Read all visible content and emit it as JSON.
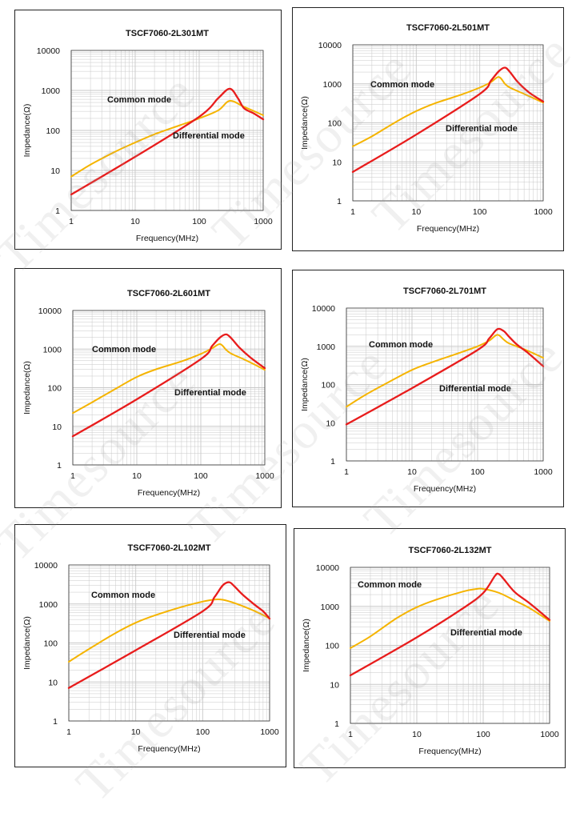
{
  "colors": {
    "common": "#f5b400",
    "differential": "#e81c1c",
    "grid": "#c8c8c8",
    "frame": "#333333"
  },
  "watermark": "Timesource",
  "chart_data": [
    {
      "type": "line",
      "title": "TSCF7060-2L301MT",
      "xlabel": "Frequency(MHz)",
      "ylabel": "Impedance(Ω)",
      "xscale": "log",
      "yscale": "log",
      "xlim": [
        1,
        1000
      ],
      "ylim": [
        1,
        10000
      ],
      "xticks": [
        "1",
        "10",
        "100",
        "1000"
      ],
      "yticks": [
        "1",
        "10",
        "100",
        "1000",
        "10000"
      ],
      "series": [
        {
          "name": "Common mode",
          "label": "Common mode",
          "x": [
            1,
            2,
            5,
            10,
            20,
            50,
            100,
            200,
            300,
            500,
            1000
          ],
          "y": [
            7,
            14,
            30,
            50,
            80,
            135,
            200,
            320,
            550,
            390,
            240
          ]
        },
        {
          "name": "Differential mode",
          "label": "Differential mode",
          "x": [
            1,
            10,
            100,
            200,
            300,
            400,
            500,
            700,
            1000
          ],
          "y": [
            2.5,
            22,
            220,
            650,
            1100,
            650,
            360,
            270,
            190
          ]
        }
      ]
    },
    {
      "type": "line",
      "title": "TSCF7060-2L501MT",
      "xlabel": "Frequency(MHz)",
      "ylabel": "Impedance(Ω)",
      "xscale": "log",
      "yscale": "log",
      "xlim": [
        1,
        1000
      ],
      "ylim": [
        1,
        10000
      ],
      "xticks": [
        "1",
        "10",
        "100",
        "1000"
      ],
      "yticks": [
        "1",
        "10",
        "100",
        "1000",
        "10000"
      ],
      "series": [
        {
          "name": "Common mode",
          "label": "Common mode",
          "x": [
            1,
            2,
            5,
            10,
            20,
            50,
            100,
            150,
            200,
            250,
            300,
            500,
            1000
          ],
          "y": [
            25,
            45,
            110,
            200,
            320,
            520,
            800,
            1100,
            1500,
            1000,
            800,
            550,
            330
          ]
        },
        {
          "name": "Differential mode",
          "label": "Differential mode",
          "x": [
            1,
            10,
            100,
            150,
            200,
            250,
            300,
            400,
            600,
            1000
          ],
          "y": [
            5.5,
            50,
            550,
            1200,
            2100,
            2600,
            2000,
            1100,
            600,
            350
          ]
        }
      ]
    },
    {
      "type": "line",
      "title": "TSCF7060-2L601MT",
      "xlabel": "Frequency(MHz)",
      "ylabel": "Impedance(Ω)",
      "xscale": "log",
      "yscale": "log",
      "xlim": [
        1,
        1000
      ],
      "ylim": [
        1,
        10000
      ],
      "xticks": [
        "1",
        "10",
        "100",
        "1000"
      ],
      "yticks": [
        "1",
        "10",
        "100",
        "1000",
        "10000"
      ],
      "series": [
        {
          "name": "Common mode",
          "label": "Common mode",
          "x": [
            1,
            2,
            5,
            10,
            20,
            50,
            100,
            150,
            200,
            250,
            300,
            500,
            1000
          ],
          "y": [
            22,
            42,
            100,
            190,
            300,
            480,
            750,
            1050,
            1350,
            950,
            760,
            520,
            290
          ]
        },
        {
          "name": "Differential mode",
          "label": "Differential mode",
          "x": [
            1,
            10,
            100,
            150,
            200,
            250,
            300,
            400,
            600,
            1000
          ],
          "y": [
            5.5,
            50,
            550,
            1200,
            2000,
            2400,
            1900,
            1100,
            600,
            320
          ]
        }
      ]
    },
    {
      "type": "line",
      "title": "TSCF7060-2L701MT",
      "xlabel": "Frequency(MHz)",
      "ylabel": "Impedance(Ω)",
      "xscale": "log",
      "yscale": "log",
      "xlim": [
        1,
        1000
      ],
      "ylim": [
        1,
        10000
      ],
      "xticks": [
        "1",
        "10",
        "100",
        "1000"
      ],
      "yticks": [
        "1",
        "10",
        "100",
        "1000",
        "10000"
      ],
      "series": [
        {
          "name": "Common mode",
          "label": "Common mode",
          "x": [
            1,
            2,
            5,
            10,
            20,
            50,
            100,
            150,
            200,
            250,
            300,
            500,
            1000
          ],
          "y": [
            26,
            55,
            130,
            240,
            380,
            650,
            1000,
            1400,
            2000,
            1500,
            1200,
            850,
            500
          ]
        },
        {
          "name": "Differential mode",
          "label": "Differential mode",
          "x": [
            1,
            10,
            100,
            150,
            200,
            250,
            300,
            400,
            600,
            1000
          ],
          "y": [
            9,
            80,
            800,
            1600,
            2800,
            2500,
            1800,
            1100,
            650,
            300
          ]
        }
      ]
    },
    {
      "type": "line",
      "title": "TSCF7060-2L102MT",
      "xlabel": "Frequency(MHz)",
      "ylabel": "Impedance(Ω)",
      "xscale": "log",
      "yscale": "log",
      "xlim": [
        1,
        1000
      ],
      "ylim": [
        1,
        10000
      ],
      "xticks": [
        "1",
        "10",
        "100",
        "1000"
      ],
      "yticks": [
        "1",
        "10",
        "100",
        "1000",
        "10000"
      ],
      "series": [
        {
          "name": "Common mode",
          "label": "Common mode",
          "x": [
            1,
            2,
            5,
            10,
            20,
            50,
            100,
            150,
            200,
            300,
            500,
            800,
            1000
          ],
          "y": [
            33,
            70,
            180,
            330,
            520,
            850,
            1150,
            1300,
            1280,
            1050,
            750,
            520,
            420
          ]
        },
        {
          "name": "Differential mode",
          "label": "Differential mode",
          "x": [
            1,
            10,
            100,
            150,
            200,
            250,
            300,
            400,
            600,
            800,
            1000
          ],
          "y": [
            7,
            65,
            650,
            1500,
            3000,
            3600,
            2800,
            1700,
            950,
            650,
            420
          ]
        }
      ]
    },
    {
      "type": "line",
      "title": "TSCF7060-2L132MT",
      "xlabel": "Frequency(MHz)",
      "ylabel": "Impedance(Ω)",
      "xscale": "log",
      "yscale": "log",
      "xlim": [
        1,
        1000
      ],
      "ylim": [
        1,
        10000
      ],
      "xticks": [
        "1",
        "10",
        "100",
        "1000"
      ],
      "yticks": [
        "1",
        "10",
        "100",
        "1000",
        "10000"
      ],
      "series": [
        {
          "name": "Common mode",
          "label": "Common mode",
          "x": [
            1,
            2,
            5,
            10,
            20,
            50,
            80,
            100,
            150,
            200,
            300,
            500,
            1000
          ],
          "y": [
            85,
            170,
            500,
            950,
            1500,
            2400,
            2800,
            2800,
            2400,
            2000,
            1400,
            900,
            420
          ]
        },
        {
          "name": "Differential mode",
          "label": "Differential mode",
          "x": [
            1,
            10,
            50,
            100,
            150,
            170,
            200,
            300,
            500,
            1000
          ],
          "y": [
            17,
            160,
            900,
            2200,
            6000,
            6800,
            5200,
            2300,
            1200,
            450
          ]
        }
      ]
    }
  ]
}
